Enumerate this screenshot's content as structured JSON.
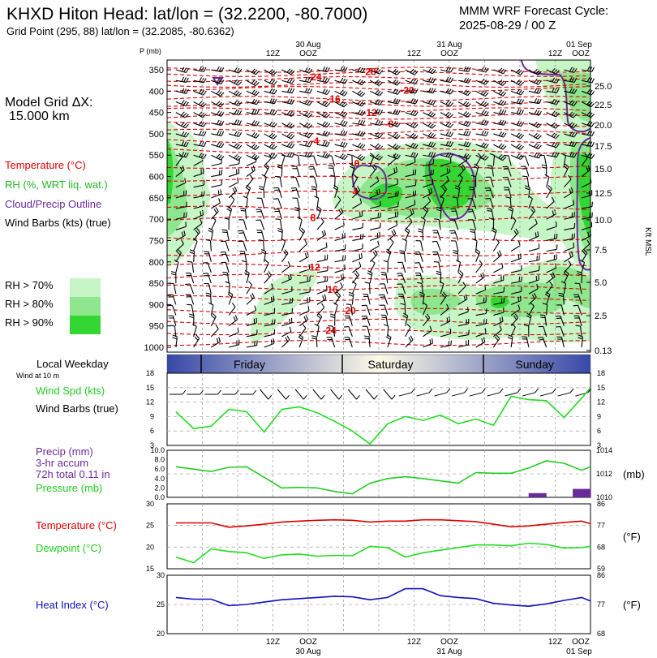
{
  "header": {
    "title": "KHXD Hiton Head:  lat/lon = (32.2200, -80.7000)",
    "subtitle": "Grid Point (295, 88) lat/lon = (32.2085, -80.6362)",
    "cycle_line1": "MMM WRF Forecast Cycle:",
    "cycle_line2": "2025-08-29 / 00  Z"
  },
  "time_axis": {
    "top_hours": [
      "12Z",
      "OOZ",
      "12Z",
      "OOZ",
      "12Z",
      "OOZ"
    ],
    "top_dates": [
      "30 Aug",
      "31 Aug",
      "01 Sep"
    ],
    "bottom_hours": [
      "12Z",
      "OOZ",
      "12Z",
      "OOZ",
      "12Z",
      "OOZ"
    ],
    "bottom_dates": [
      "30 Aug",
      "31 Aug",
      "01 Sep"
    ]
  },
  "sounding": {
    "p_label": "P (mb)",
    "pressure_ticks": [
      "350",
      "400",
      "450",
      "500",
      "550",
      "600",
      "650",
      "700",
      "750",
      "800",
      "850",
      "900",
      "950",
      "1000"
    ],
    "height_ticks": [
      "25.0",
      "22.5",
      "20.0",
      "17.5",
      "15.0",
      "12.5",
      "10.0",
      "7.5",
      "5.0",
      "2.5",
      "0.13"
    ],
    "height_label": "Kft MSL",
    "temp_labels": [
      "-28",
      "-24",
      "-20",
      "-16",
      "-12",
      "-8",
      "-4",
      "0",
      "4",
      "8",
      "12",
      "16",
      "20",
      "24"
    ],
    "grid_dx_line1": "Model Grid ΔX:",
    "grid_dx_line2": "15.000 km",
    "legend_temperature": "Temperature (°C)",
    "legend_rh": "RH (%, WRT liq. wat.)",
    "legend_cloud": "Cloud/Precip Outline",
    "legend_wind": "Wind Barbs (kts) (true)",
    "rh_keys": [
      "RH > 70%",
      "RH > 80%",
      "RH > 90%"
    ]
  },
  "weekday_bar": {
    "title": "Local Weekday",
    "subtitle": "Wind at 10 m",
    "days": [
      "Friday",
      "Saturday",
      "Sunday"
    ]
  },
  "colors": {
    "temperature": "#e00000",
    "rh70": "#c6f5c6",
    "rh80": "#8ee68e",
    "rh90": "#33d633",
    "cloud": "#6a2a9a",
    "wind_speed": "#22dd22",
    "pressure": "#22cc22",
    "precip": "#6a2a9a",
    "dewpoint": "#22dd22",
    "heat_index": "#1010c0",
    "weekday_dark": "#3848a8",
    "weekday_light": "#fdfbe6"
  },
  "chart_data": [
    {
      "type": "line",
      "panel": "wind",
      "ylabel_left_1": "Wind Spd (kts)",
      "ylabel_left_2": "Wind Barbs (true)",
      "yticks": [
        "18",
        "15",
        "12",
        "9",
        "6",
        "3"
      ],
      "ylim": [
        3,
        18
      ],
      "x_hours": [
        3,
        9,
        15,
        21,
        27,
        33,
        39,
        45,
        51,
        57,
        63,
        69,
        75,
        81,
        87,
        93,
        99,
        105,
        111,
        117,
        123,
        129,
        135,
        141,
        144
      ],
      "series": [
        {
          "values": [
            10.0,
            6.5,
            7.0,
            10.5,
            10.0,
            5.8,
            10.5,
            11.0,
            9.8,
            8.0,
            6.0,
            3.3,
            7.5,
            9.0,
            8.2,
            9.3,
            7.5,
            8.5,
            7.2,
            13.2,
            12.5,
            12.3,
            8.8,
            12.8,
            15.0
          ]
        }
      ]
    },
    {
      "type": "line",
      "panel": "precip_pressure",
      "label_precip_1": "Precip (mm)",
      "label_precip_2": "3-hr accum",
      "label_precip_3": "72h total 0.11 in",
      "label_pressure": "Pressure (mb)",
      "y_left_ticks": [
        "10.0",
        "8.0",
        "6.0",
        "4.0",
        "2.0",
        "0.0"
      ],
      "y_right_ticks": [
        "1014",
        "1012",
        "1010"
      ],
      "y_right_unit": "(mb)",
      "ylim_precip": [
        0,
        10
      ],
      "ylim_pressure": [
        1010,
        1014
      ],
      "x_hours": [
        3,
        9,
        15,
        21,
        27,
        33,
        39,
        45,
        51,
        57,
        63,
        69,
        75,
        81,
        87,
        93,
        99,
        105,
        111,
        117,
        123,
        129,
        135,
        141,
        144
      ],
      "series": [
        {
          "values": [
            1012.6,
            1012.4,
            1012.2,
            1012.55,
            1012.6,
            1011.7,
            1010.8,
            1010.85,
            1010.8,
            1010.5,
            1010.3,
            1011.2,
            1011.6,
            1011.75,
            1011.6,
            1011.4,
            1011.2,
            1012.1,
            1012.05,
            1012.05,
            1012.5,
            1013.1,
            1012.9,
            1012.3,
            1012.6
          ]
        }
      ],
      "precip_bars": [
        {
          "x_hours": 126,
          "value": 0.9
        },
        {
          "x_hours": 141,
          "value": 1.8
        }
      ]
    },
    {
      "type": "line",
      "panel": "temperature_dewpoint",
      "label_temp": "Temperature (°C)",
      "label_dew": "Dewpoint (°C)",
      "y_left_ticks": [
        "30",
        "25",
        "20",
        "15"
      ],
      "y_right_ticks": [
        "86",
        "77",
        "68",
        "59"
      ],
      "y_right_unit": "(°F)",
      "ylim": [
        15,
        30
      ],
      "x_hours": [
        3,
        9,
        15,
        21,
        27,
        33,
        39,
        45,
        51,
        57,
        63,
        69,
        75,
        81,
        87,
        93,
        99,
        105,
        111,
        117,
        123,
        129,
        135,
        141,
        144
      ],
      "series": [
        {
          "name": "Temperature (°C)",
          "values": [
            25.6,
            25.6,
            25.6,
            24.6,
            24.9,
            25.3,
            25.8,
            26.0,
            26.2,
            26.3,
            26.2,
            25.8,
            26.0,
            26.0,
            26.3,
            26.3,
            26.1,
            25.9,
            25.3,
            24.7,
            24.9,
            25.3,
            25.7,
            26.0,
            25.4
          ]
        },
        {
          "name": "Dewpoint (°C)",
          "values": [
            17.7,
            16.4,
            19.6,
            19.0,
            18.7,
            17.4,
            18.2,
            18.4,
            17.9,
            18.1,
            18.0,
            20.2,
            19.9,
            17.7,
            18.7,
            19.3,
            19.9,
            20.5,
            20.5,
            20.3,
            20.9,
            20.6,
            19.8,
            19.9,
            20.2
          ]
        }
      ]
    },
    {
      "type": "line",
      "panel": "heat_index",
      "label": "Heat Index (°C)",
      "y_left_ticks": [
        "30",
        "25",
        "20"
      ],
      "y_right_ticks": [
        "86",
        "77",
        "68"
      ],
      "y_right_unit": "(°F)",
      "ylim": [
        20,
        30
      ],
      "x_hours": [
        3,
        9,
        15,
        21,
        27,
        33,
        39,
        45,
        51,
        57,
        63,
        69,
        75,
        81,
        87,
        93,
        99,
        105,
        111,
        117,
        123,
        129,
        135,
        141,
        144
      ],
      "series": [
        {
          "name": "Heat Index (°C)",
          "values": [
            26.2,
            25.9,
            25.9,
            24.8,
            25.0,
            25.4,
            25.8,
            26.0,
            26.2,
            26.4,
            26.3,
            25.8,
            26.2,
            27.7,
            27.7,
            26.5,
            26.2,
            26.0,
            25.2,
            24.9,
            24.7,
            25.1,
            25.7,
            26.2,
            25.6
          ]
        }
      ]
    }
  ]
}
